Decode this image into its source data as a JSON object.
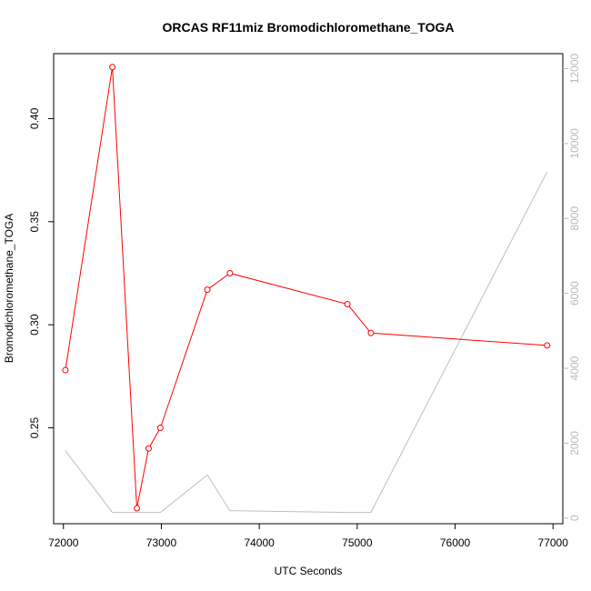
{
  "chart_data": {
    "type": "line",
    "title": "ORCAS RF11miz Bromodichloromethane_TOGA",
    "xlabel": "UTC Seconds",
    "ylabel": "Bromodichloromethane_TOGA",
    "xlim": [
      71900,
      77100
    ],
    "ylim": [
      0.2035,
      0.4315
    ],
    "y2lim": [
      -150,
      12400
    ],
    "x_ticks": [
      72000,
      73000,
      74000,
      75000,
      76000,
      77000
    ],
    "y_ticks": [
      0.25,
      0.3,
      0.35,
      0.4
    ],
    "y2_ticks": [
      0,
      2000,
      4000,
      6000,
      8000,
      10000,
      12000
    ],
    "grid": false,
    "series": [
      {
        "axis": "left",
        "color": "#ff0000",
        "markers": "open-circle",
        "x": [
          72020,
          72500,
          72750,
          72870,
          72990,
          73470,
          73700,
          74900,
          75140,
          76940
        ],
        "y": [
          0.278,
          0.425,
          0.211,
          0.24,
          0.25,
          0.317,
          0.325,
          0.31,
          0.296,
          0.29
        ]
      },
      {
        "axis": "right",
        "color": "#bebebe",
        "markers": "none",
        "x": [
          72020,
          72500,
          72750,
          72990,
          73470,
          73700,
          74900,
          75140,
          76940
        ],
        "y": [
          1800,
          150,
          150,
          150,
          1150,
          200,
          150,
          150,
          9250
        ]
      }
    ]
  }
}
